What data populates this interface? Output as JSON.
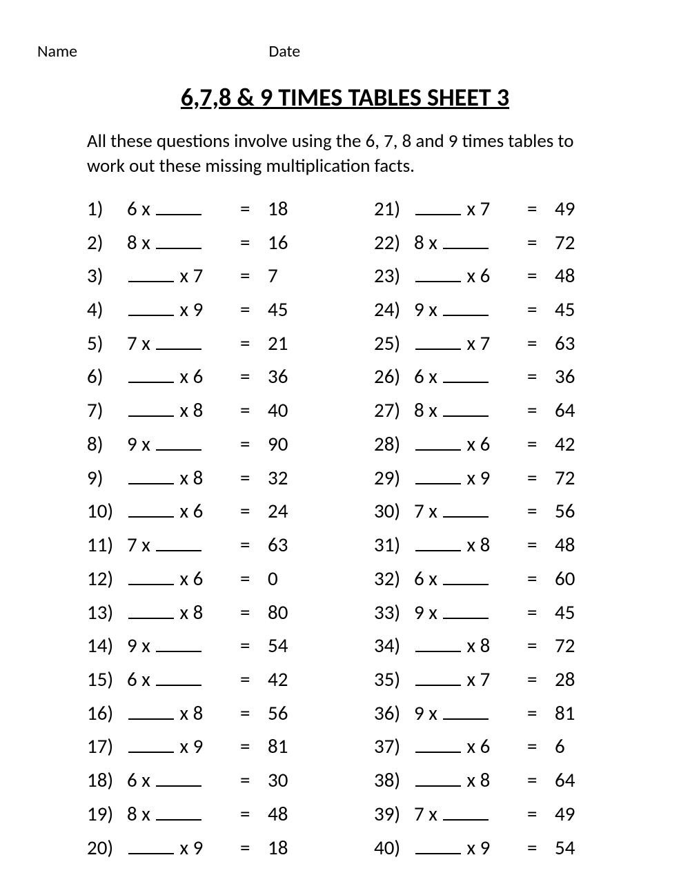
{
  "header": {
    "name_label": "Name",
    "date_label": "Date"
  },
  "title": "6,7,8 & 9 TIMES TABLES SHEET 3",
  "instructions": "All these questions involve using the 6, 7, 8 and 9 times tables to work out these missing multiplication facts.",
  "typography": {
    "title_fontsize": 36,
    "body_fontsize": 29,
    "instruction_fontsize": 27,
    "text_color": "#000000",
    "background_color": "#ffffff"
  },
  "worksheet": {
    "type": "multiplication-fill-in-blank",
    "equals": "=",
    "times": "x",
    "problems": [
      {
        "n": "1)",
        "blank_pos": "right",
        "factor": "6",
        "answer": "18"
      },
      {
        "n": "2)",
        "blank_pos": "right",
        "factor": "8",
        "answer": "16"
      },
      {
        "n": "3)",
        "blank_pos": "left",
        "factor": "7",
        "answer": "7"
      },
      {
        "n": "4)",
        "blank_pos": "left",
        "factor": "9",
        "answer": "45"
      },
      {
        "n": "5)",
        "blank_pos": "right",
        "factor": "7",
        "answer": "21"
      },
      {
        "n": "6)",
        "blank_pos": "left",
        "factor": "6",
        "answer": "36"
      },
      {
        "n": "7)",
        "blank_pos": "left",
        "factor": "8",
        "answer": "40"
      },
      {
        "n": "8)",
        "blank_pos": "right",
        "factor": "9",
        "answer": "90"
      },
      {
        "n": "9)",
        "blank_pos": "left",
        "factor": "8",
        "answer": "32"
      },
      {
        "n": "10)",
        "blank_pos": "left",
        "factor": "6",
        "answer": "24"
      },
      {
        "n": "11)",
        "blank_pos": "right",
        "factor": "7",
        "answer": "63"
      },
      {
        "n": "12)",
        "blank_pos": "left",
        "factor": "6",
        "answer": "0"
      },
      {
        "n": "13)",
        "blank_pos": "left",
        "factor": "8",
        "answer": "80"
      },
      {
        "n": "14)",
        "blank_pos": "right",
        "factor": "9",
        "answer": "54"
      },
      {
        "n": "15)",
        "blank_pos": "right",
        "factor": "6",
        "answer": "42"
      },
      {
        "n": "16)",
        "blank_pos": "left",
        "factor": "8",
        "answer": "56"
      },
      {
        "n": "17)",
        "blank_pos": "left",
        "factor": "9",
        "answer": "81"
      },
      {
        "n": "18)",
        "blank_pos": "right",
        "factor": "6",
        "answer": "30"
      },
      {
        "n": "19)",
        "blank_pos": "right",
        "factor": "8",
        "answer": "48"
      },
      {
        "n": "20)",
        "blank_pos": "left",
        "factor": "9",
        "answer": "18"
      },
      {
        "n": "21)",
        "blank_pos": "left",
        "factor": "7",
        "answer": "49"
      },
      {
        "n": "22)",
        "blank_pos": "right",
        "factor": "8",
        "answer": "72"
      },
      {
        "n": "23)",
        "blank_pos": "left",
        "factor": "6",
        "answer": "48"
      },
      {
        "n": "24)",
        "blank_pos": "right",
        "factor": "9",
        "answer": "45"
      },
      {
        "n": "25)",
        "blank_pos": "left",
        "factor": "7",
        "answer": "63"
      },
      {
        "n": "26)",
        "blank_pos": "right",
        "factor": "6",
        "answer": "36"
      },
      {
        "n": "27)",
        "blank_pos": "right",
        "factor": "8",
        "answer": "64"
      },
      {
        "n": "28)",
        "blank_pos": "left",
        "factor": "6",
        "answer": "42"
      },
      {
        "n": "29)",
        "blank_pos": "left",
        "factor": "9",
        "answer": "72"
      },
      {
        "n": "30)",
        "blank_pos": "right",
        "factor": "7",
        "answer": "56"
      },
      {
        "n": "31)",
        "blank_pos": "left",
        "factor": "8",
        "answer": "48"
      },
      {
        "n": "32)",
        "blank_pos": "right",
        "factor": "6",
        "answer": "60"
      },
      {
        "n": "33)",
        "blank_pos": "right",
        "factor": "9",
        "answer": "45"
      },
      {
        "n": "34)",
        "blank_pos": "left",
        "factor": "8",
        "answer": "72"
      },
      {
        "n": "35)",
        "blank_pos": "left",
        "factor": "7",
        "answer": "28"
      },
      {
        "n": "36)",
        "blank_pos": "right",
        "factor": "9",
        "answer": "81"
      },
      {
        "n": "37)",
        "blank_pos": "left",
        "factor": "6",
        "answer": "6"
      },
      {
        "n": "38)",
        "blank_pos": "left",
        "factor": "8",
        "answer": "64"
      },
      {
        "n": "39)",
        "blank_pos": "right",
        "factor": "7",
        "answer": "49"
      },
      {
        "n": "40)",
        "blank_pos": "left",
        "factor": "9",
        "answer": "54"
      }
    ]
  }
}
